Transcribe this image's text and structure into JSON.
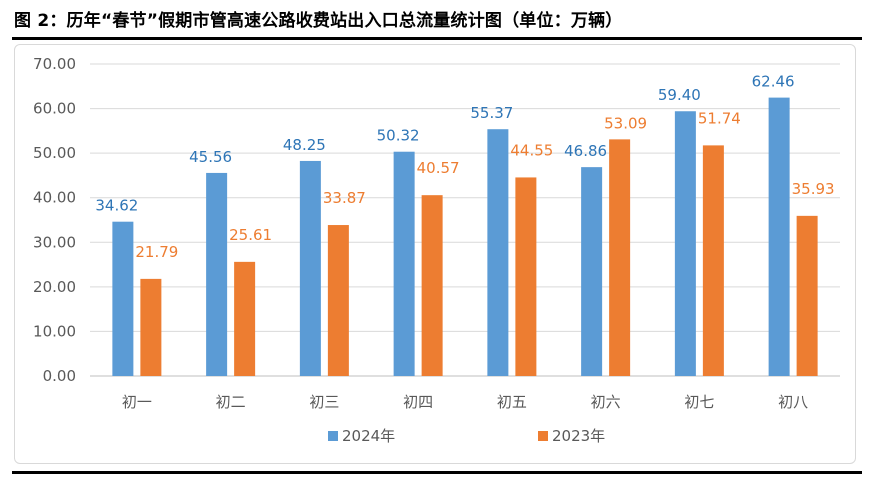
{
  "figure": {
    "title": "图 2：历年“春节”假期市管高速公路收费站出入口总流量统计图（单位：万辆）"
  },
  "chart_data": {
    "type": "bar",
    "title": "",
    "xlabel": "",
    "ylabel": "",
    "categories": [
      "初一",
      "初二",
      "初三",
      "初四",
      "初五",
      "初六",
      "初七",
      "初八"
    ],
    "series": [
      {
        "name": "2024年",
        "color": "#5B9BD5",
        "values": [
          34.62,
          45.56,
          48.25,
          50.32,
          55.37,
          46.86,
          59.4,
          62.46
        ],
        "labels": [
          "34.62",
          "45.56",
          "48.25",
          "50.32",
          "55.37",
          "46.86",
          "59.40",
          "62.46"
        ]
      },
      {
        "name": "2023年",
        "color": "#ED7D31",
        "values": [
          21.79,
          25.61,
          33.87,
          40.57,
          44.55,
          53.09,
          51.74,
          35.93
        ],
        "labels": [
          "21.79",
          "25.61",
          "33.87",
          "40.57",
          "44.55",
          "53.09",
          "51.74",
          "35.93"
        ]
      }
    ],
    "ylim": [
      0,
      70
    ],
    "yticks": [
      "0.00",
      "10.00",
      "20.00",
      "30.00",
      "40.00",
      "50.00",
      "60.00",
      "70.00"
    ],
    "grid": true,
    "legend": "bottom"
  }
}
